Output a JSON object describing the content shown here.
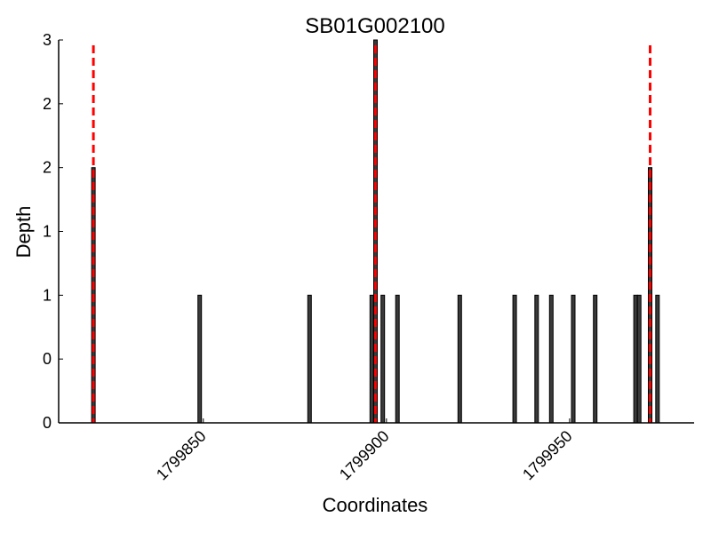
{
  "chart_data": {
    "type": "bar",
    "title": "SB01G002100",
    "xlabel": "Coordinates",
    "ylabel": "Depth",
    "xlim": [
      1799810.5,
      1799984
    ],
    "ylim": [
      0,
      3
    ],
    "ytick_values": [
      0,
      0.5,
      1,
      1.5,
      2,
      2.5,
      3
    ],
    "ytick_labels": [
      "0",
      "0",
      "1",
      "1",
      "2",
      "2",
      "3"
    ],
    "xtick_values": [
      1799850,
      1799900,
      1799950
    ],
    "xtick_labels": [
      "1799850",
      "1799900",
      "1799950"
    ],
    "grid": false,
    "bars": {
      "x": [
        1799820,
        1799849,
        1799879,
        1799896,
        1799897,
        1799899,
        1799903,
        1799920,
        1799935,
        1799941,
        1799945,
        1799951,
        1799957,
        1799968,
        1799969,
        1799972,
        1799974
      ],
      "values": [
        2,
        1,
        1,
        1,
        3,
        1,
        1,
        1,
        1,
        1,
        1,
        1,
        1,
        1,
        1,
        2,
        1
      ],
      "color": "#3a3a3a",
      "edge_color": "#000000"
    },
    "vlines": {
      "x": [
        1799820,
        1799897,
        1799972
      ],
      "color": "#ff0000",
      "style": "dashed"
    }
  }
}
